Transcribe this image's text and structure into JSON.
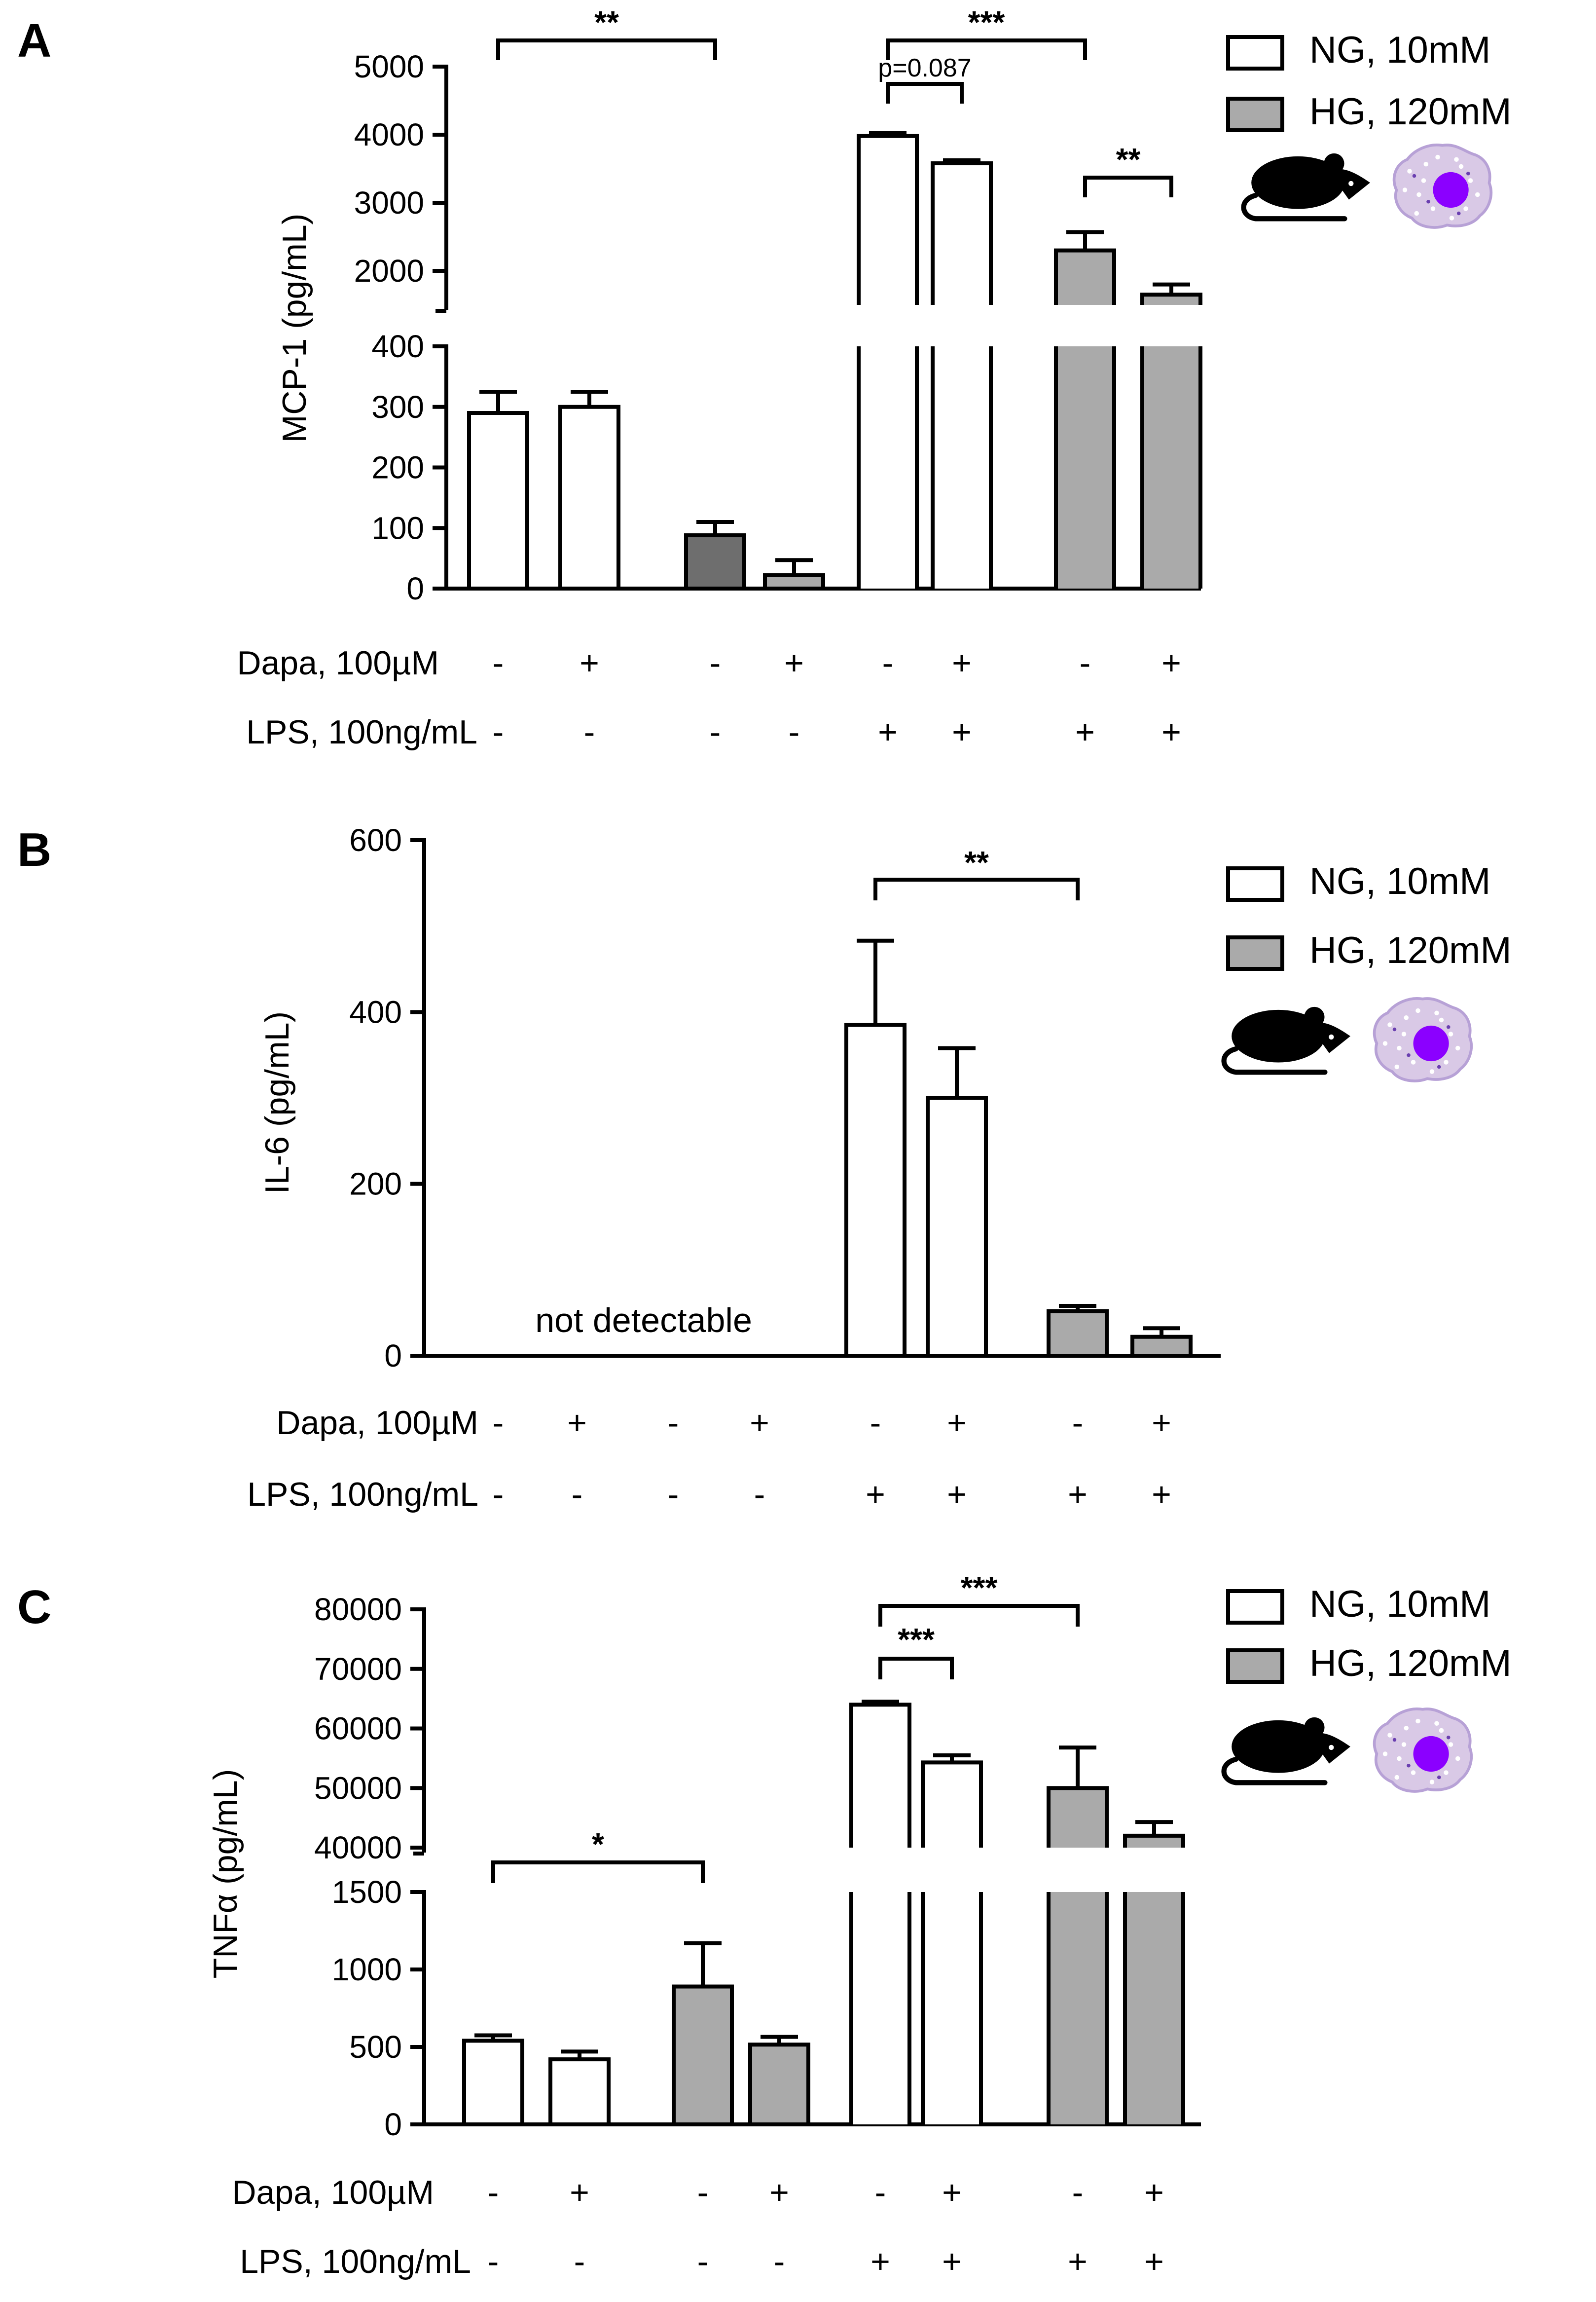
{
  "figure_colors": {
    "ng_fill": "#ffffff",
    "hg_fill": "#aaaaaa",
    "hg_dark_fill": "#6e6e6e",
    "stroke": "#000000",
    "cell_fill": "#d9c9e6",
    "cell_edge": "#b7a1d6",
    "nucleus": "#8b00ff",
    "mouse": "#000000"
  },
  "icons": [
    "mouse-silhouette-icon",
    "macrophage-cell-icon"
  ],
  "chart_data": [
    {
      "panel": "A",
      "type": "bar",
      "ylabel": "MCP-1 (pg/mL)",
      "axis_break": true,
      "ylim_lower": [
        0,
        400
      ],
      "ylim_upper": [
        1500,
        5000
      ],
      "lower_ticks": [
        "0",
        "100",
        "200",
        "300",
        "400"
      ],
      "upper_ticks": [
        "2000",
        "3000",
        "4000",
        "5000"
      ],
      "rows": [
        {
          "label": "Dapa, 100µM",
          "signs": [
            "-",
            "+",
            "-",
            "+",
            "-",
            "+",
            "-",
            "+"
          ]
        },
        {
          "label": "LPS, 100ng/mL",
          "signs": [
            "-",
            "-",
            "-",
            "-",
            "+",
            "+",
            "+",
            "+"
          ]
        }
      ],
      "legend": [
        "NG, 10mM",
        "HG, 120mM"
      ],
      "bars": [
        {
          "group": "NG",
          "value": 290,
          "error": 35
        },
        {
          "group": "NG",
          "value": 300,
          "error": 25
        },
        {
          "group": "HG",
          "value": 88,
          "error": 22
        },
        {
          "group": "HG",
          "value": 22,
          "error": 25
        },
        {
          "group": "NG",
          "value": 3980,
          "error": 45
        },
        {
          "group": "NG",
          "value": 3580,
          "error": 45
        },
        {
          "group": "HG",
          "value": 2300,
          "error": 270
        },
        {
          "group": "HG",
          "value": 1650,
          "error": 150
        }
      ],
      "annotations": [
        {
          "from": 1,
          "to": 3,
          "label": "**"
        },
        {
          "from": 5,
          "to": 7,
          "label": "***"
        },
        {
          "from": 5,
          "to": 6,
          "label": "p=0.087"
        },
        {
          "from": 7,
          "to": 8,
          "label": "**"
        }
      ]
    },
    {
      "panel": "B",
      "type": "bar",
      "ylabel": "IL-6 (pg/mL)",
      "axis_break": false,
      "ylim": [
        0,
        600
      ],
      "ticks": [
        "0",
        "200",
        "400",
        "600"
      ],
      "rows": [
        {
          "label": "Dapa, 100µM",
          "signs": [
            "-",
            "+",
            "-",
            "+",
            "-",
            "+",
            "-",
            "+"
          ]
        },
        {
          "label": "LPS, 100ng/mL",
          "signs": [
            "-",
            "-",
            "-",
            "-",
            "+",
            "+",
            "+",
            "+"
          ]
        }
      ],
      "legend": [
        "NG, 10mM",
        "HG, 120mM"
      ],
      "note": "not detectable",
      "bars": [
        {
          "group": "NG",
          "value": 0,
          "error": 0
        },
        {
          "group": "NG",
          "value": 0,
          "error": 0
        },
        {
          "group": "HG",
          "value": 0,
          "error": 0
        },
        {
          "group": "HG",
          "value": 0,
          "error": 0
        },
        {
          "group": "NG",
          "value": 385,
          "error": 98
        },
        {
          "group": "NG",
          "value": 300,
          "error": 58
        },
        {
          "group": "HG",
          "value": 52,
          "error": 6
        },
        {
          "group": "HG",
          "value": 22,
          "error": 10
        }
      ],
      "annotations": [
        {
          "from": 5,
          "to": 7,
          "label": "**"
        }
      ]
    },
    {
      "panel": "C",
      "type": "bar",
      "ylabel": "TNFα (pg/mL)",
      "axis_break": true,
      "ylim_lower": [
        0,
        1500
      ],
      "ylim_upper": [
        40000,
        80000
      ],
      "lower_ticks": [
        "0",
        "500",
        "1000",
        "1500"
      ],
      "upper_ticks": [
        "40000",
        "50000",
        "60000",
        "70000",
        "80000"
      ],
      "rows": [
        {
          "label": "Dapa, 100µM",
          "signs": [
            "-",
            "+",
            "-",
            "+",
            "-",
            "+",
            "-",
            "+"
          ]
        },
        {
          "label": "LPS, 100ng/mL",
          "signs": [
            "-",
            "-",
            "-",
            "-",
            "+",
            "+",
            "+",
            "+"
          ]
        }
      ],
      "legend": [
        "NG, 10mM",
        "HG, 120mM"
      ],
      "bars": [
        {
          "group": "NG",
          "value": 540,
          "error": 35
        },
        {
          "group": "NG",
          "value": 420,
          "error": 50
        },
        {
          "group": "HG",
          "value": 890,
          "error": 280
        },
        {
          "group": "HG",
          "value": 515,
          "error": 50
        },
        {
          "group": "NG",
          "value": 64000,
          "error": 500
        },
        {
          "group": "NG",
          "value": 54300,
          "error": 1200
        },
        {
          "group": "HG",
          "value": 50000,
          "error": 6800
        },
        {
          "group": "HG",
          "value": 42000,
          "error": 2300
        }
      ],
      "annotations": [
        {
          "from": 1,
          "to": 3,
          "label": "*"
        },
        {
          "from": 5,
          "to": 7,
          "label": "***"
        },
        {
          "from": 5,
          "to": 6,
          "label": "***"
        }
      ]
    }
  ],
  "panel_labels": [
    "A",
    "B",
    "C"
  ]
}
